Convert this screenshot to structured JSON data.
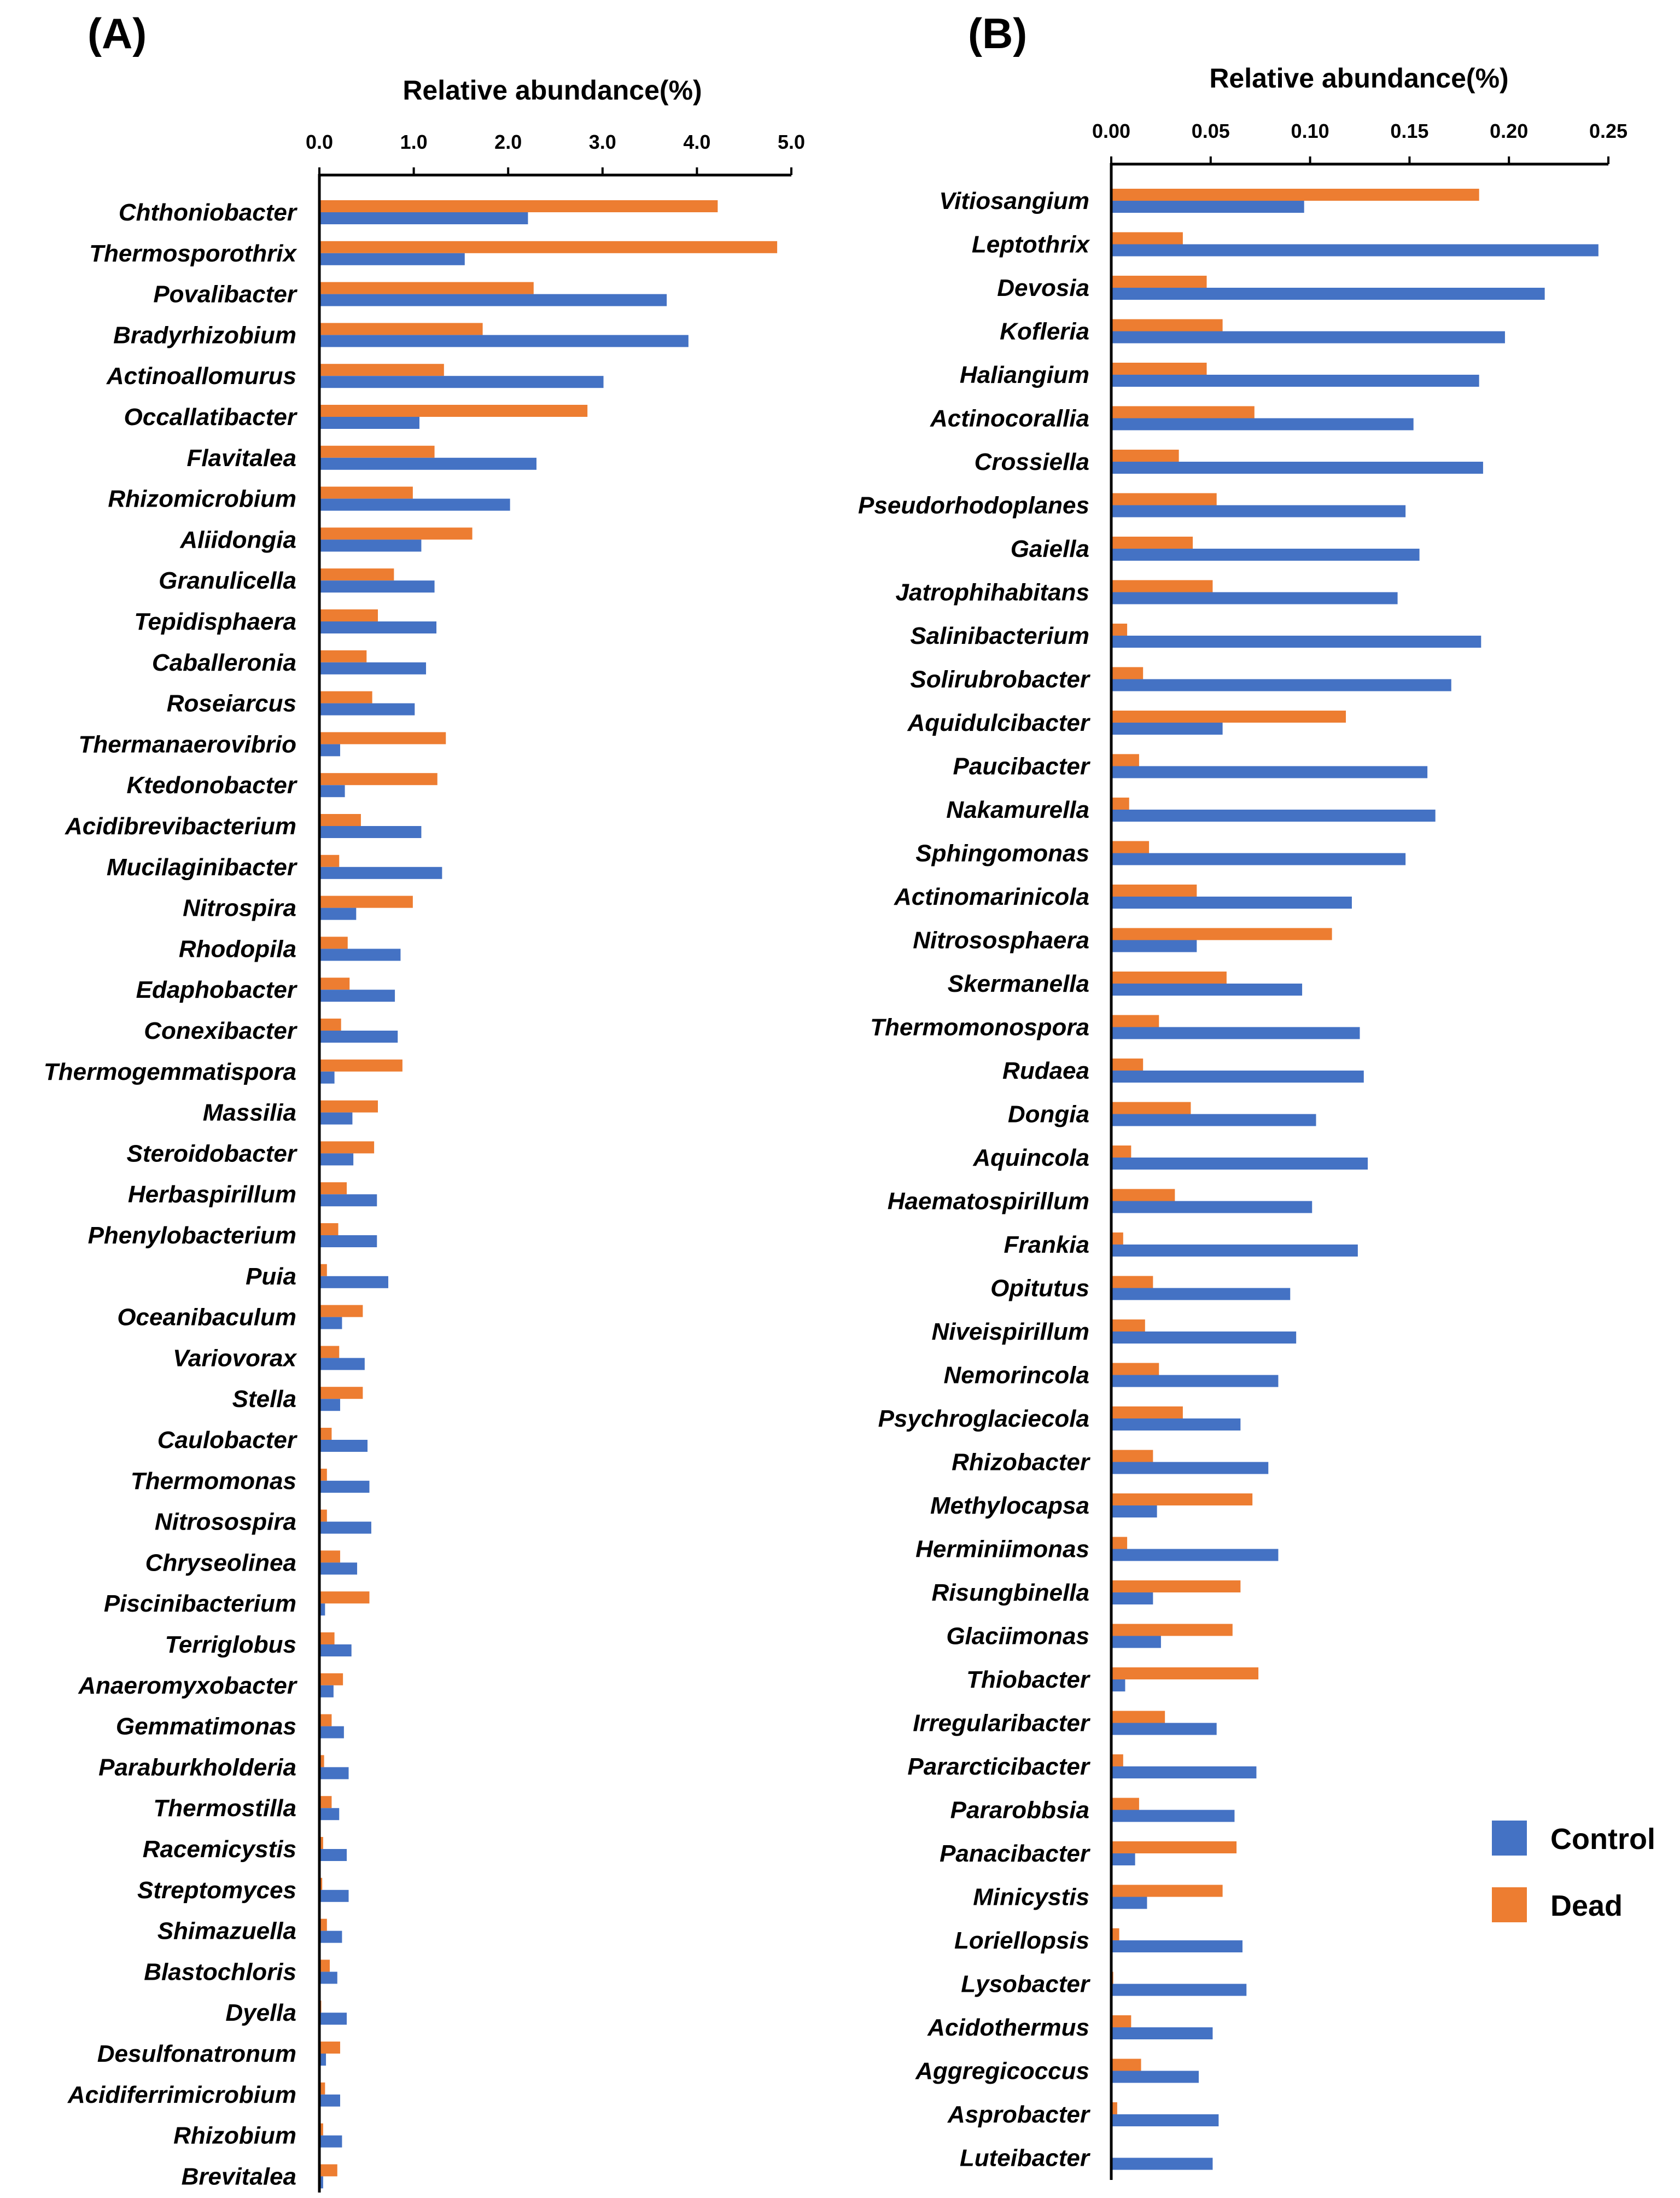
{
  "colors": {
    "control": "#4472C4",
    "dead": "#ED7D31"
  },
  "legend": {
    "control_label": "Control",
    "dead_label": "Dead"
  },
  "chart_data": [
    {
      "panel": "(A)",
      "type": "bar",
      "orientation": "horizontal",
      "title": "Relative abundance(%)",
      "xlabel": "Relative abundance(%)",
      "ylabel": "",
      "xlim": [
        0,
        5.0
      ],
      "ticks": [
        0,
        1,
        2,
        3,
        4,
        5
      ],
      "tick_labels": [
        "0.0",
        "1.0",
        "2.0",
        "3.0",
        "4.0",
        "5.0"
      ],
      "categories": [
        "Chthoniobacter",
        "Thermosporothrix",
        "Povalibacter",
        "Bradyrhizobium",
        "Actinoallomurus",
        "Occallatibacter",
        "Flavitalea",
        "Rhizomicrobium",
        "Aliidongia",
        "Granulicella",
        "Tepidisphaera",
        "Caballeronia",
        "Roseiarcus",
        "Thermanaerovibrio",
        "Ktedonobacter",
        "Acidibrevibacterium",
        "Mucilaginibacter",
        "Nitrospira",
        "Rhodopila",
        "Edaphobacter",
        "Conexibacter",
        "Thermogemmatispora",
        "Massilia",
        "Steroidobacter",
        "Herbaspirillum",
        "Phenylobacterium",
        "Puia",
        "Oceanibaculum",
        "Variovorax",
        "Stella",
        "Caulobacter",
        "Thermomonas",
        "Nitrosospira",
        "Chryseolinea",
        "Piscinibacterium",
        "Terriglobus",
        "Anaeromyxobacter",
        "Gemmatimonas",
        "Paraburkholderia",
        "Thermostilla",
        "Racemicystis",
        "Streptomyces",
        "Shimazuella",
        "Blastochloris",
        "Dyella",
        "Desulfonatronum",
        "Acidiferrimicrobium",
        "Rhizobium",
        "Brevitalea"
      ],
      "series": [
        {
          "name": "Dead",
          "values": [
            4.22,
            4.85,
            2.27,
            1.73,
            1.32,
            2.84,
            1.22,
            0.99,
            1.62,
            0.79,
            0.62,
            0.5,
            0.56,
            1.34,
            1.25,
            0.44,
            0.21,
            0.99,
            0.3,
            0.32,
            0.23,
            0.88,
            0.62,
            0.58,
            0.29,
            0.2,
            0.08,
            0.46,
            0.21,
            0.46,
            0.13,
            0.08,
            0.08,
            0.22,
            0.53,
            0.16,
            0.25,
            0.13,
            0.05,
            0.13,
            0.04,
            0.03,
            0.08,
            0.11,
            0.02,
            0.22,
            0.06,
            0.04,
            0.19
          ]
        },
        {
          "name": "Control",
          "values": [
            2.21,
            1.54,
            3.68,
            3.91,
            3.01,
            1.06,
            2.3,
            2.02,
            1.08,
            1.22,
            1.24,
            1.13,
            1.01,
            0.22,
            0.27,
            1.08,
            1.3,
            0.39,
            0.86,
            0.8,
            0.83,
            0.16,
            0.35,
            0.36,
            0.61,
            0.61,
            0.73,
            0.24,
            0.48,
            0.22,
            0.51,
            0.53,
            0.55,
            0.4,
            0.06,
            0.34,
            0.15,
            0.26,
            0.31,
            0.21,
            0.29,
            0.31,
            0.24,
            0.19,
            0.29,
            0.07,
            0.22,
            0.24,
            0.04
          ]
        }
      ]
    },
    {
      "panel": "(B)",
      "type": "bar",
      "orientation": "horizontal",
      "title": "Relative abundance(%)",
      "xlabel": "Relative abundance(%)",
      "ylabel": "",
      "xlim": [
        0,
        0.25
      ],
      "ticks": [
        0,
        0.05,
        0.1,
        0.15,
        0.2,
        0.25
      ],
      "tick_labels": [
        "0.00",
        "0.05",
        "0.10",
        "0.15",
        "0.20",
        "0.25"
      ],
      "categories": [
        "Vitiosangium",
        "Leptothrix",
        "Devosia",
        "Kofleria",
        "Haliangium",
        "Actinocorallia",
        "Crossiella",
        "Pseudorhodoplanes",
        "Gaiella",
        "Jatrophihabitans",
        "Salinibacterium",
        "Solirubrobacter",
        "Aquidulcibacter",
        "Paucibacter",
        "Nakamurella",
        "Sphingomonas",
        "Actinomarinicola",
        "Nitrososphaera",
        "Skermanella",
        "Thermomonospora",
        "Rudaea",
        "Dongia",
        "Aquincola",
        "Haematospirillum",
        "Frankia",
        "Opitutus",
        "Niveispirillum",
        "Nemorincola",
        "Psychroglaciecola",
        "Rhizobacter",
        "Methylocapsa",
        "Herminiimonas",
        "Risungbinella",
        "Glaciimonas",
        "Thiobacter",
        "Irregularibacter",
        "Pararcticibacter",
        "Pararobbsia",
        "Panacibacter",
        "Minicystis",
        "Loriellopsis",
        "Lysobacter",
        "Acidothermus",
        "Aggregicoccus",
        "Asprobacter",
        "Luteibacter"
      ],
      "series": [
        {
          "name": "Dead",
          "values": [
            0.185,
            0.036,
            0.048,
            0.056,
            0.048,
            0.072,
            0.034,
            0.053,
            0.041,
            0.051,
            0.008,
            0.016,
            0.118,
            0.014,
            0.009,
            0.019,
            0.043,
            0.111,
            0.058,
            0.024,
            0.016,
            0.04,
            0.01,
            0.032,
            0.006,
            0.021,
            0.017,
            0.024,
            0.036,
            0.021,
            0.071,
            0.008,
            0.065,
            0.061,
            0.074,
            0.027,
            0.006,
            0.014,
            0.063,
            0.056,
            0.004,
            0.001,
            0.01,
            0.015,
            0.003,
            0.0
          ]
        },
        {
          "name": "Control",
          "values": [
            0.097,
            0.245,
            0.218,
            0.198,
            0.185,
            0.152,
            0.187,
            0.148,
            0.155,
            0.144,
            0.186,
            0.171,
            0.056,
            0.159,
            0.163,
            0.148,
            0.121,
            0.043,
            0.096,
            0.125,
            0.127,
            0.103,
            0.129,
            0.101,
            0.124,
            0.09,
            0.093,
            0.084,
            0.065,
            0.079,
            0.023,
            0.084,
            0.021,
            0.025,
            0.007,
            0.053,
            0.073,
            0.062,
            0.012,
            0.018,
            0.066,
            0.068,
            0.051,
            0.044,
            0.054,
            0.051
          ]
        }
      ]
    }
  ]
}
